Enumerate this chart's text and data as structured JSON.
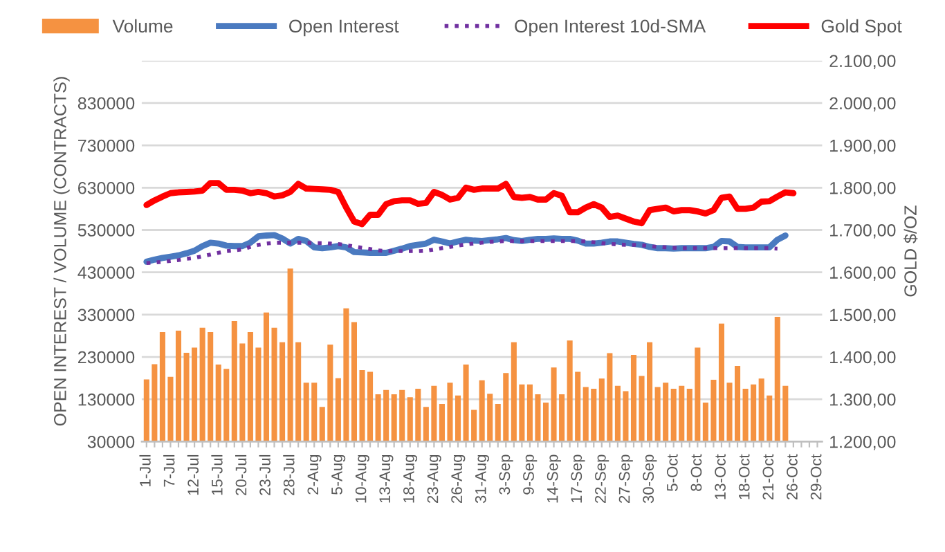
{
  "chart_data": {
    "type": "bar",
    "ylabel": "OPEN INTEREST / VOLUME (CONTRACTS)",
    "y2label": "GOLD $/OZ",
    "categories": [
      "1-Jul",
      null,
      null,
      "7-Jul",
      null,
      null,
      "12-Jul",
      null,
      null,
      "15-Jul",
      null,
      null,
      "20-Jul",
      null,
      null,
      "23-Jul",
      null,
      null,
      "28-Jul",
      null,
      null,
      "2-Aug",
      null,
      null,
      "5-Aug",
      null,
      null,
      "10-Aug",
      null,
      null,
      "13-Aug",
      null,
      null,
      "18-Aug",
      null,
      null,
      "23-Aug",
      null,
      null,
      "26-Aug",
      null,
      null,
      "31-Aug",
      null,
      null,
      "3-Sep",
      null,
      null,
      "9-Sep",
      null,
      null,
      "14-Sep",
      null,
      null,
      "17-Sep",
      null,
      null,
      "22-Sep",
      null,
      null,
      "27-Sep",
      null,
      null,
      "30-Sep",
      null,
      null,
      "5-Oct",
      null,
      null,
      "8-Oct",
      null,
      null,
      "13-Oct",
      null,
      null,
      "18-Oct",
      null,
      null,
      "21-Oct",
      null,
      null,
      "26-Oct",
      null,
      null,
      "29-Oct"
    ],
    "series": [
      {
        "name": "Volume",
        "color": "#f59241",
        "values": [
          177000,
          213000,
          289000,
          183000,
          292000,
          240000,
          252000,
          299000,
          289000,
          212000,
          202000,
          315000,
          262000,
          289000,
          252000,
          335000,
          299000,
          265000,
          439000,
          265000,
          169000,
          169000,
          112000,
          259000,
          180000,
          345000,
          312000,
          199000,
          195000,
          142000,
          152000,
          142000,
          152000,
          135000,
          155000,
          112000,
          162000,
          119000,
          169000,
          139000,
          212000,
          105000,
          175000,
          143000,
          119000,
          192000,
          265000,
          165000,
          165000,
          142000,
          122000,
          205000,
          142000,
          269000,
          195000,
          159000,
          155000,
          179000,
          239000,
          162000,
          149000,
          235000,
          185000,
          265000,
          159000,
          169000,
          155000,
          162000,
          155000,
          252000,
          122000,
          176000,
          309000,
          169000,
          209000,
          155000,
          165000,
          179000,
          139000,
          325000,
          162000,
          null,
          null,
          null,
          null
        ]
      },
      {
        "name": "Open Interest",
        "type": "line",
        "color": "#4a7ac0",
        "line_style": "solid",
        "values": [
          455000,
          460000,
          464000,
          467000,
          470000,
          475000,
          481000,
          492000,
          500000,
          498000,
          493000,
          492000,
          492000,
          500000,
          515000,
          517000,
          518000,
          510000,
          498000,
          509000,
          504000,
          489000,
          487000,
          489000,
          492000,
          489000,
          478000,
          477000,
          476000,
          476000,
          476000,
          481000,
          486000,
          492000,
          495000,
          498000,
          507000,
          503000,
          498000,
          503000,
          507000,
          505000,
          504000,
          506000,
          508000,
          511000,
          506000,
          504000,
          507000,
          509000,
          509000,
          510000,
          509000,
          509000,
          505000,
          498000,
          498000,
          500000,
          503000,
          503000,
          500000,
          497000,
          495000,
          490000,
          487000,
          487000,
          486000,
          487000,
          487000,
          487000,
          487000,
          490000,
          504000,
          503000,
          490000,
          489000,
          489000,
          489000,
          489000,
          507000,
          517000,
          null,
          null,
          null,
          null
        ]
      },
      {
        "name": "Open Interest 10d-SMA",
        "type": "line",
        "color": "#7030a0",
        "line_style": "dotted",
        "values": [
          452000,
          453000,
          455000,
          457000,
          459000,
          462000,
          464000,
          468000,
          472000,
          476000,
          480000,
          482000,
          484000,
          490000,
          495000,
          498000,
          500000,
          500000,
          500000,
          500000,
          500000,
          499000,
          499000,
          498000,
          497000,
          494000,
          491000,
          488000,
          485000,
          482000,
          480000,
          480000,
          480000,
          480000,
          480000,
          481000,
          484000,
          487000,
          490000,
          493000,
          496000,
          498000,
          500000,
          502000,
          503000,
          504000,
          504000,
          504000,
          504000,
          504000,
          504000,
          504000,
          504000,
          504000,
          504000,
          503000,
          501000,
          499000,
          497000,
          496000,
          495000,
          495000,
          494000,
          492000,
          490000,
          489000,
          488000,
          487000,
          487000,
          487000,
          487000,
          487000,
          487000,
          487000,
          487000,
          487000,
          487000,
          487000,
          487000,
          486000,
          null,
          null,
          null,
          null,
          null
        ]
      },
      {
        "name": "Gold Spot",
        "type": "line",
        "axis": "y2",
        "color": "#ff0000",
        "line_style": "solid",
        "values": [
          1759,
          1770,
          1779,
          1787,
          1789,
          1790,
          1791,
          1793,
          1811,
          1811,
          1795,
          1795,
          1793,
          1787,
          1790,
          1787,
          1779,
          1782,
          1790,
          1809,
          1798,
          1797,
          1796,
          1795,
          1790,
          1753,
          1720,
          1714,
          1736,
          1736,
          1761,
          1768,
          1770,
          1770,
          1762,
          1764,
          1790,
          1783,
          1772,
          1776,
          1800,
          1795,
          1798,
          1798,
          1798,
          1809,
          1778,
          1776,
          1778,
          1772,
          1772,
          1787,
          1781,
          1742,
          1742,
          1753,
          1761,
          1753,
          1731,
          1734,
          1727,
          1720,
          1716,
          1747,
          1750,
          1753,
          1744,
          1747,
          1747,
          1744,
          1739,
          1747,
          1776,
          1779,
          1750,
          1750,
          1753,
          1767,
          1768,
          1779,
          1789,
          1787,
          null,
          null,
          null
        ]
      }
    ],
    "ylim": [
      30000,
      930000
    ],
    "yticks": [
      30000,
      130000,
      230000,
      330000,
      430000,
      530000,
      630000,
      730000,
      830000,
      {
        "value": 930000,
        "label": null
      }
    ],
    "y2lim": [
      1200,
      2100
    ],
    "y2ticks": [
      {
        "value": 1200,
        "label": "1.200,00"
      },
      {
        "value": 1300,
        "label": "1.300,00"
      },
      {
        "value": 1400,
        "label": "1.400,00"
      },
      {
        "value": 1500,
        "label": "1.500,00"
      },
      {
        "value": 1600,
        "label": "1.600,00"
      },
      {
        "value": 1700,
        "label": "1.700,00"
      },
      {
        "value": 1800,
        "label": "1.800,00"
      },
      {
        "value": 1900,
        "label": "1.900,00"
      },
      {
        "value": 2000,
        "label": "2.000,00"
      },
      {
        "value": 2100,
        "label": "2.100,00"
      }
    ],
    "grid": "y",
    "legend": "top"
  }
}
